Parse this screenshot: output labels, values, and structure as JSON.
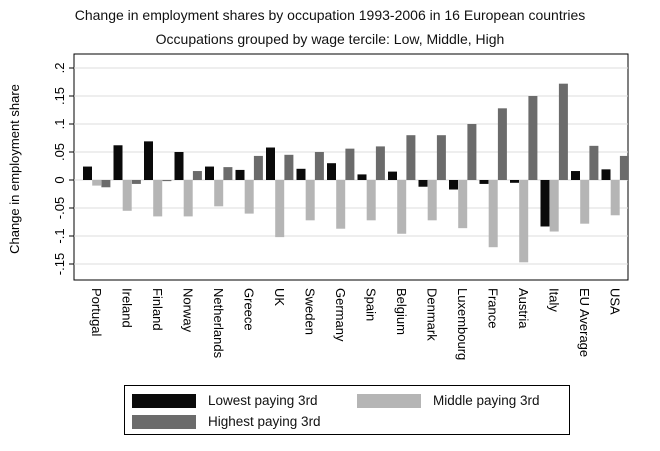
{
  "chart_data": {
    "type": "bar",
    "title": "Change in employment shares by occupation 1993-2006 in 16 European countries",
    "subtitle": "Occupations grouped by wage tercile: Low, Middle, High",
    "ylabel": "Change in employment share",
    "xlabel": "",
    "ylim": [
      -0.175,
      0.2
    ],
    "yticks": [
      -0.15,
      -0.1,
      -0.05,
      0,
      0.05,
      0.1,
      0.15,
      0.2
    ],
    "ytick_labels": [
      "-.15",
      "-.1",
      "-.05",
      "0",
      ".05",
      ".1",
      ".15",
      ".2"
    ],
    "grid": true,
    "legend_position": "bottom",
    "categories": [
      "Portugal",
      "Ireland",
      "Finland",
      "Norway",
      "Netherlands",
      "Greece",
      "UK",
      "Sweden",
      "Germany",
      "Spain",
      "Belgium",
      "Denmark",
      "Luxembourg",
      "France",
      "Austria",
      "Italy",
      "EU Average",
      "USA"
    ],
    "series": [
      {
        "name": "Lowest paying 3rd",
        "color": "#0a0a0a",
        "values": [
          0.024,
          0.062,
          0.069,
          0.05,
          0.024,
          0.018,
          0.058,
          0.02,
          0.03,
          0.01,
          0.015,
          -0.012,
          -0.017,
          -0.007,
          -0.005,
          -0.083,
          0.016,
          0.019
        ]
      },
      {
        "name": "Middle paying 3rd",
        "color": "#b5b5b5",
        "values": [
          -0.01,
          -0.055,
          -0.065,
          -0.065,
          -0.047,
          -0.06,
          -0.102,
          -0.072,
          -0.087,
          -0.072,
          -0.096,
          -0.072,
          -0.086,
          -0.12,
          -0.147,
          -0.092,
          -0.078,
          -0.063
        ]
      },
      {
        "name": "Highest paying 3rd",
        "color": "#6b6b6b",
        "values": [
          -0.013,
          -0.007,
          -0.002,
          0.016,
          0.023,
          0.043,
          0.045,
          0.05,
          0.056,
          0.06,
          0.08,
          0.08,
          0.1,
          0.128,
          0.15,
          0.172,
          0.061,
          0.043
        ]
      }
    ]
  }
}
